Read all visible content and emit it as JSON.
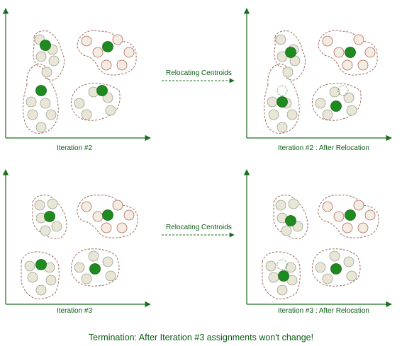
{
  "panels": [
    {
      "id": "p1",
      "label": "Iteration #2"
    },
    {
      "id": "p2",
      "label": "Iteration #2 : After Relocation"
    },
    {
      "id": "p3",
      "label": "Iteration #3"
    },
    {
      "id": "p4",
      "label": "Iteration #3 : After Relocation"
    }
  ],
  "arrows": [
    {
      "label": "Relocating Centroids"
    },
    {
      "label": "Relocating Centroids"
    }
  ],
  "footer": "Termination: After Iteration #3 assignments won't change!",
  "colors": {
    "text": "#0b5d14",
    "axis": "#1a6e1f",
    "centroid": "#1f8a1f",
    "point_fill": "#e9e6d8",
    "point_stroke": "#9aa48e",
    "red_point_fill": "#f3ece3",
    "red_point_stroke": "#b56b5a",
    "cluster_outline": "#9c6a5a"
  }
}
